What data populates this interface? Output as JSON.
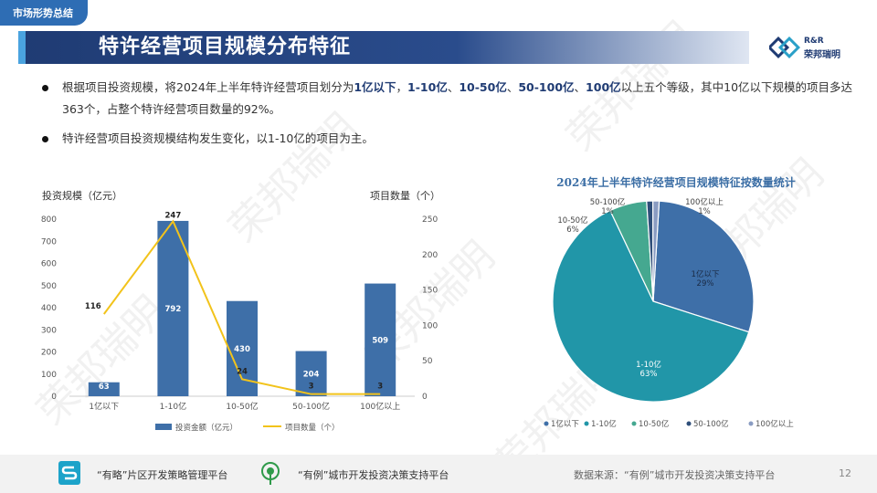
{
  "header": {
    "section_tab": "市场形势总结",
    "title": "特许经营项目规模分布特征",
    "logo_text_en": "R&R",
    "logo_text_cn": "荣邦瑞明"
  },
  "bullets": [
    {
      "parts": [
        {
          "text": "根据项目投资规模，将2024年上半年特许经营项目划分为",
          "hl": false
        },
        {
          "text": "1亿以下",
          "hl": true
        },
        {
          "text": "，",
          "hl": false
        },
        {
          "text": "1-10亿",
          "hl": true
        },
        {
          "text": "、",
          "hl": false
        },
        {
          "text": "10-50亿",
          "hl": true
        },
        {
          "text": "、",
          "hl": false
        },
        {
          "text": "50-100亿",
          "hl": true
        },
        {
          "text": "、",
          "hl": false
        },
        {
          "text": "100亿",
          "hl": true
        },
        {
          "text": "以上五个等级，其中10亿以下规模的项目多达363个，占整个特许经营项目数量的92%。",
          "hl": false
        }
      ]
    },
    {
      "parts": [
        {
          "text": "特许经营项目投资规模结构发生变化，以1-10亿的项目为主。",
          "hl": false
        }
      ]
    }
  ],
  "chart_data": [
    {
      "type": "bar",
      "title": "",
      "xlabel": "",
      "ylabel": "投资规模（亿元）",
      "y2label": "项目数量（个）",
      "categories": [
        "1亿以下",
        "1-10亿",
        "10-50亿",
        "50-100亿",
        "100亿以上"
      ],
      "series": [
        {
          "name": "投资金额（亿元）",
          "type": "bar",
          "axis": "left",
          "values": [
            63,
            792,
            430,
            204,
            509
          ],
          "color": "#3e6fa8"
        },
        {
          "name": "项目数量（个）",
          "type": "line",
          "axis": "right",
          "values": [
            116,
            247,
            24,
            3,
            3
          ],
          "color": "#f2c31b"
        }
      ],
      "ylim": [
        0,
        800
      ],
      "yticks": [
        0,
        100,
        200,
        300,
        400,
        500,
        600,
        700,
        800
      ],
      "y2lim": [
        0,
        250
      ],
      "y2ticks": [
        0,
        50,
        100,
        150,
        200,
        250
      ],
      "legend": "bottom",
      "grid": false
    },
    {
      "type": "pie",
      "title": "2024年上半年特许经营项目规模特征按数量统计",
      "categories": [
        "1亿以下",
        "1-10亿",
        "10-50亿",
        "50-100亿",
        "100亿以上"
      ],
      "values": [
        29,
        63,
        6,
        1,
        1
      ],
      "value_labels": [
        "29%",
        "63%",
        "6%",
        "1%",
        "1%"
      ],
      "colors": [
        "#3e6fa8",
        "#2196a8",
        "#45a890",
        "#2f4f7a",
        "#8a9cc2"
      ],
      "legend": "bottom"
    }
  ],
  "footer": {
    "item1": "“有略”片区开发策略管理平台",
    "item2": "“有例”城市开发投资决策支持平台",
    "source": "数据来源：“有例”城市开发投资决策支持平台",
    "page": "12"
  },
  "watermark": "荣邦瑞明"
}
